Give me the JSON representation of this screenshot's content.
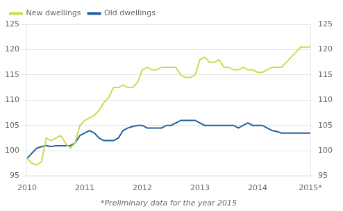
{
  "chart_data": {
    "type": "line",
    "annotations": [
      "*Preliminary data for the year 2015"
    ],
    "categories": [
      "2010",
      null,
      null,
      null,
      null,
      null,
      null,
      null,
      null,
      null,
      null,
      null,
      "2011",
      null,
      null,
      null,
      null,
      null,
      null,
      null,
      null,
      null,
      null,
      null,
      "2012",
      null,
      null,
      null,
      null,
      null,
      null,
      null,
      null,
      null,
      null,
      null,
      "2013",
      null,
      null,
      null,
      null,
      null,
      null,
      null,
      null,
      null,
      null,
      null,
      "2014",
      null,
      null,
      null,
      null,
      null,
      null,
      null,
      null,
      null,
      null,
      "2015*"
    ],
    "series": [
      {
        "name": "New dwellings",
        "color": "#c8dc50",
        "values": [
          98.5,
          97.5,
          97.2,
          97.8,
          102.5,
          102.0,
          102.5,
          103.0,
          101.5,
          100.5,
          101.5,
          105.0,
          106.0,
          106.5,
          107.0,
          108.0,
          109.5,
          110.5,
          112.5,
          112.5,
          113.0,
          112.5,
          112.5,
          113.5,
          116.0,
          116.5,
          116.0,
          116.0,
          116.5,
          116.5,
          116.5,
          116.5,
          115.0,
          114.5,
          114.5,
          115.0,
          118.0,
          118.5,
          117.5,
          117.5,
          118.0,
          116.5,
          116.5,
          116.0,
          116.0,
          116.5,
          116.0,
          116.0,
          115.5,
          115.5,
          116.0,
          116.5,
          116.5,
          116.5,
          117.5,
          118.5,
          119.5,
          120.5,
          120.5,
          120.5
        ]
      },
      {
        "name": "Old dwellings",
        "color": "#2060a0",
        "values": [
          98.5,
          99.5,
          100.5,
          100.8,
          101.0,
          100.8,
          101.0,
          101.0,
          101.0,
          101.0,
          101.5,
          103.0,
          103.5,
          104.0,
          103.5,
          102.5,
          102.0,
          102.0,
          102.0,
          102.5,
          104.0,
          104.5,
          104.8,
          105.0,
          105.0,
          104.5,
          104.5,
          104.5,
          104.5,
          105.0,
          105.0,
          105.5,
          106.0,
          106.0,
          106.0,
          106.0,
          105.5,
          105.0,
          105.0,
          105.0,
          105.0,
          105.0,
          105.0,
          105.0,
          104.5,
          105.0,
          105.5,
          105.0,
          105.0,
          105.0,
          104.5,
          104.0,
          103.8,
          103.5,
          103.5,
          103.5,
          103.5,
          103.5,
          103.5,
          103.5
        ]
      }
    ],
    "ylim": [
      95,
      125
    ],
    "yticks": [
      95,
      100,
      105,
      110,
      115,
      120,
      125
    ],
    "y2lim": [
      95,
      125
    ],
    "y2ticks": [
      95,
      100,
      105,
      110,
      115,
      120,
      125
    ],
    "grid": "y",
    "legend": "upper left"
  }
}
